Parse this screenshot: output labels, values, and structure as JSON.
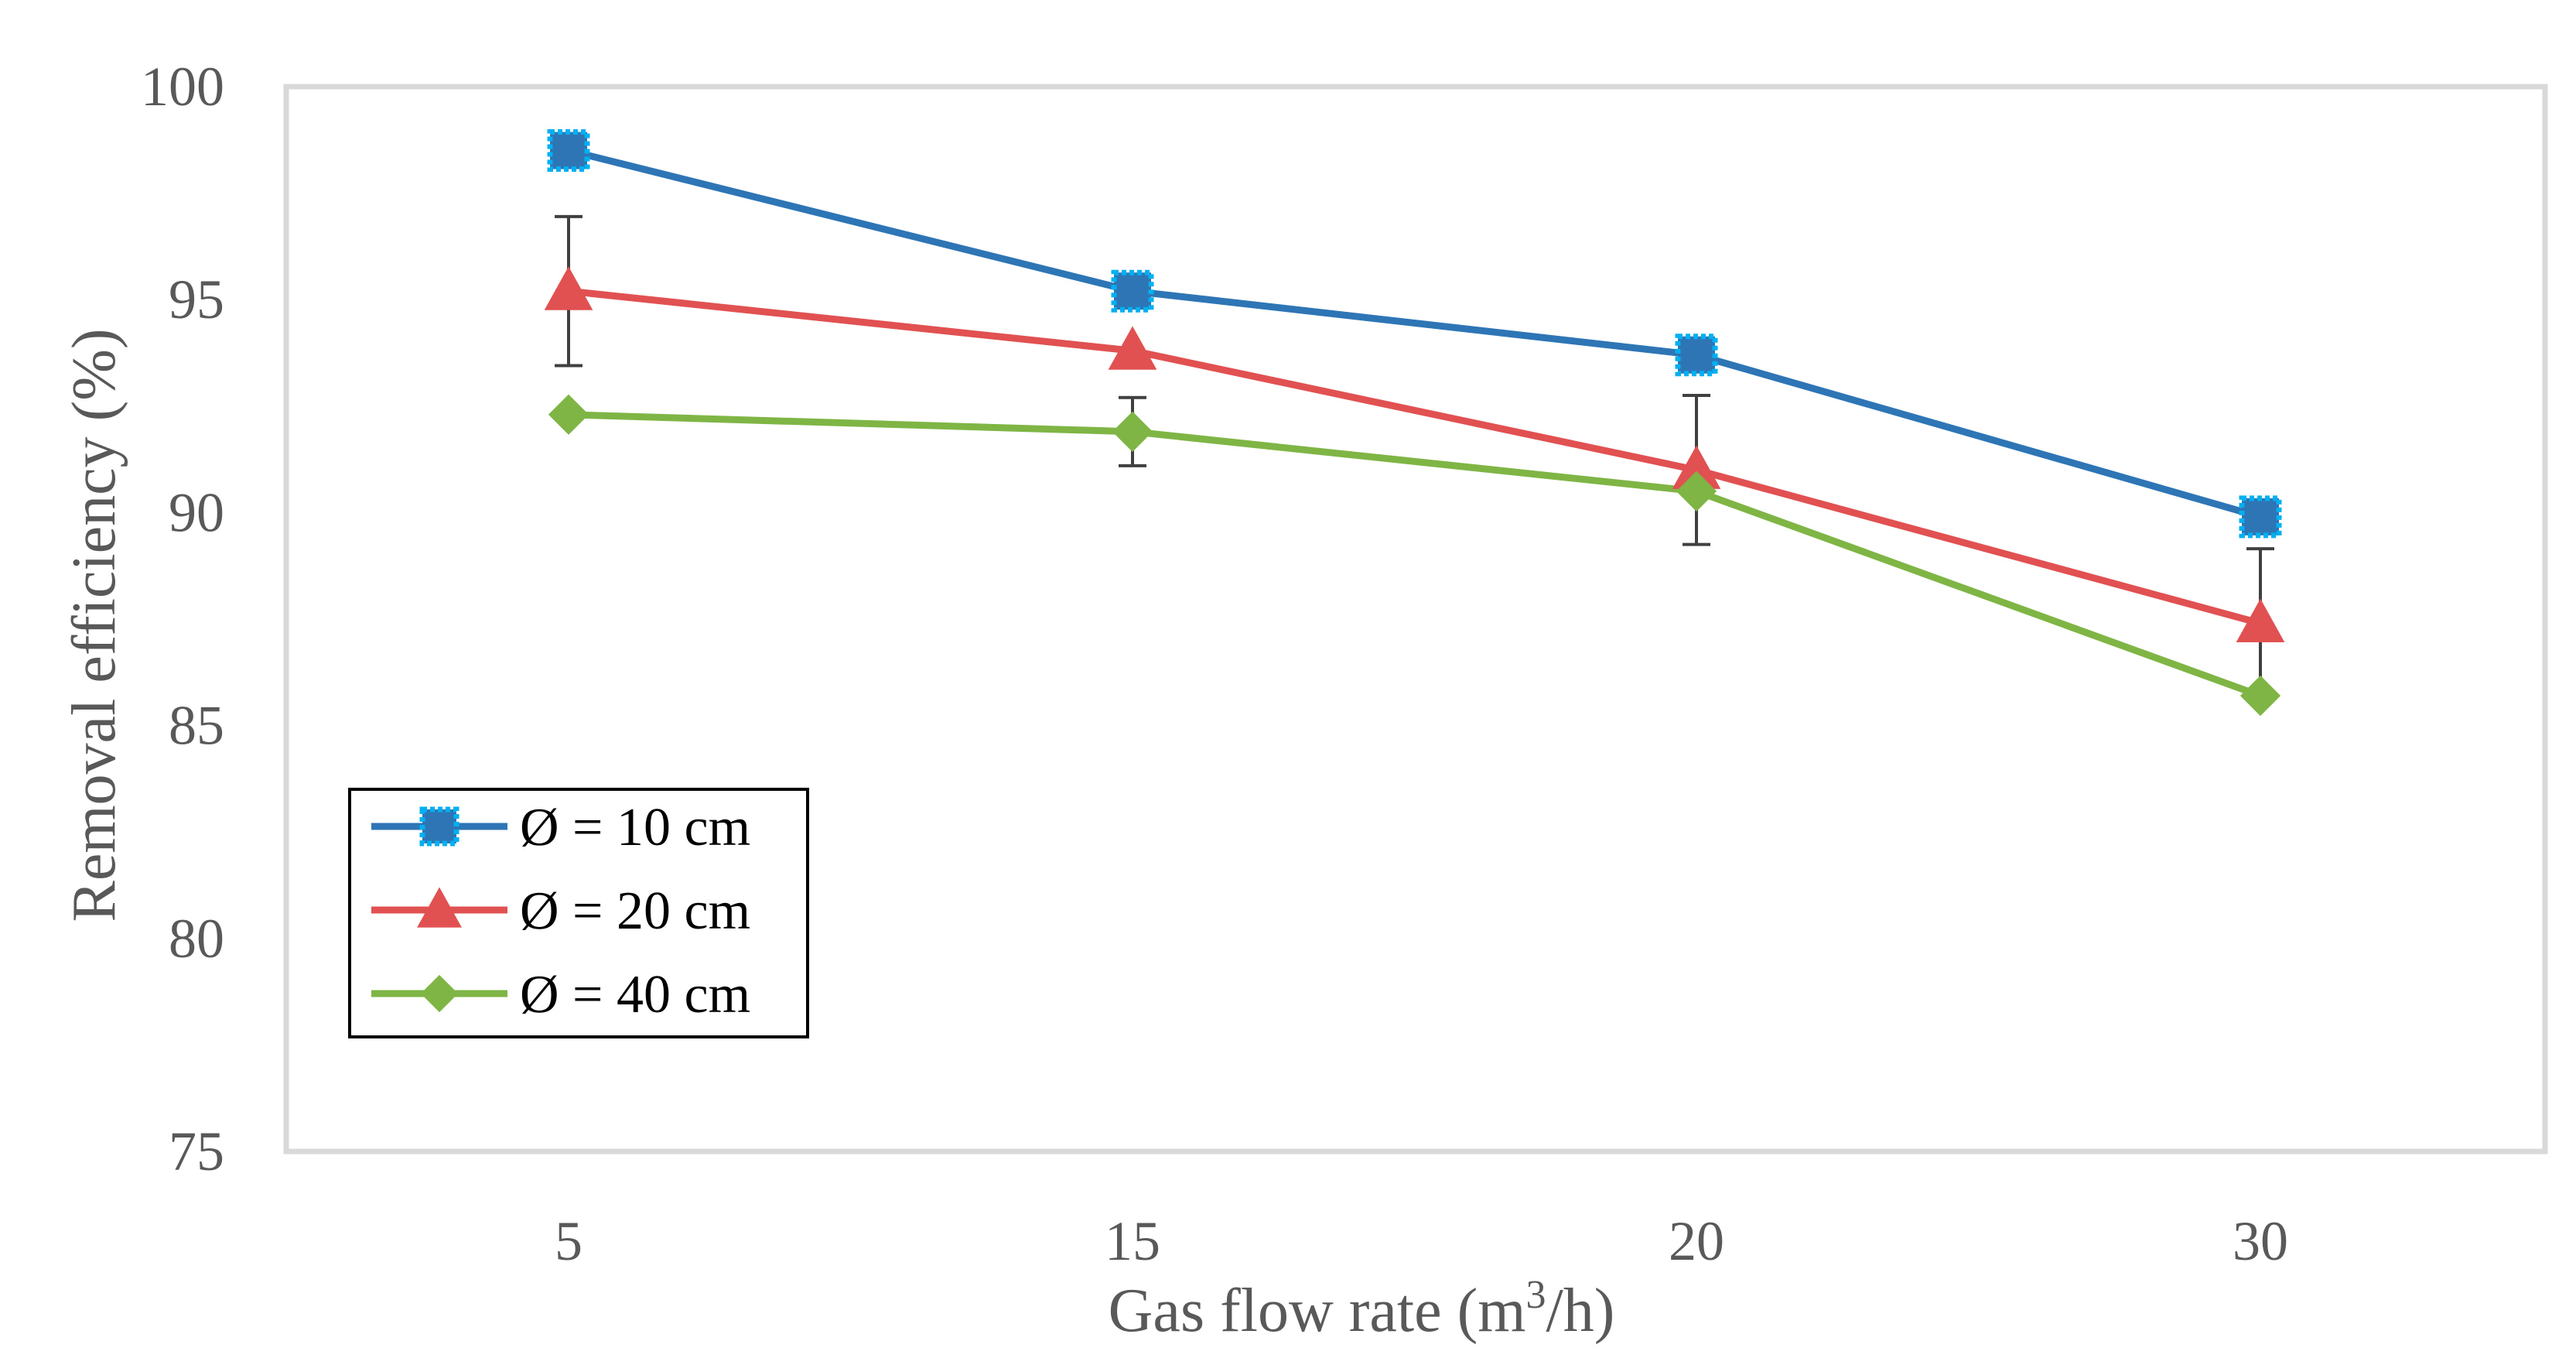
{
  "chart_data": {
    "type": "line",
    "title": "",
    "xlabel_main": "Gas flow rate (m",
    "xlabel_sup": "3",
    "xlabel_tail": "/h)",
    "ylabel": "Removal efficiency (%)",
    "categories": [
      "5",
      "15",
      "20",
      "30"
    ],
    "ylim": [
      75,
      100
    ],
    "yticks": [
      "75",
      "80",
      "85",
      "90",
      "95",
      "100"
    ],
    "grid": false,
    "legend_position": "bottom-left",
    "series": [
      {
        "name": "Ø = 10 cm",
        "marker": "square",
        "color": "#2E75B6",
        "marker_color": "#2E75B6",
        "marker_edge": "#00B0F0",
        "values": [
          98.5,
          95.2,
          93.7,
          89.9
        ],
        "error": [
          0,
          0,
          0,
          0
        ]
      },
      {
        "name": "Ø = 20 cm",
        "marker": "triangle",
        "color": "#E15151",
        "marker_color": "#E15151",
        "marker_edge": "#E15151",
        "values": [
          95.2,
          93.8,
          91.0,
          87.4
        ],
        "error": [
          1.75,
          0,
          1.75,
          1.75
        ]
      },
      {
        "name": "Ø = 40 cm",
        "marker": "diamond",
        "color": "#7FB545",
        "marker_color": "#7FB545",
        "marker_edge": "#7FB545",
        "values": [
          92.3,
          91.9,
          90.5,
          85.7
        ],
        "error": [
          0,
          0.8,
          0,
          0
        ]
      }
    ]
  }
}
